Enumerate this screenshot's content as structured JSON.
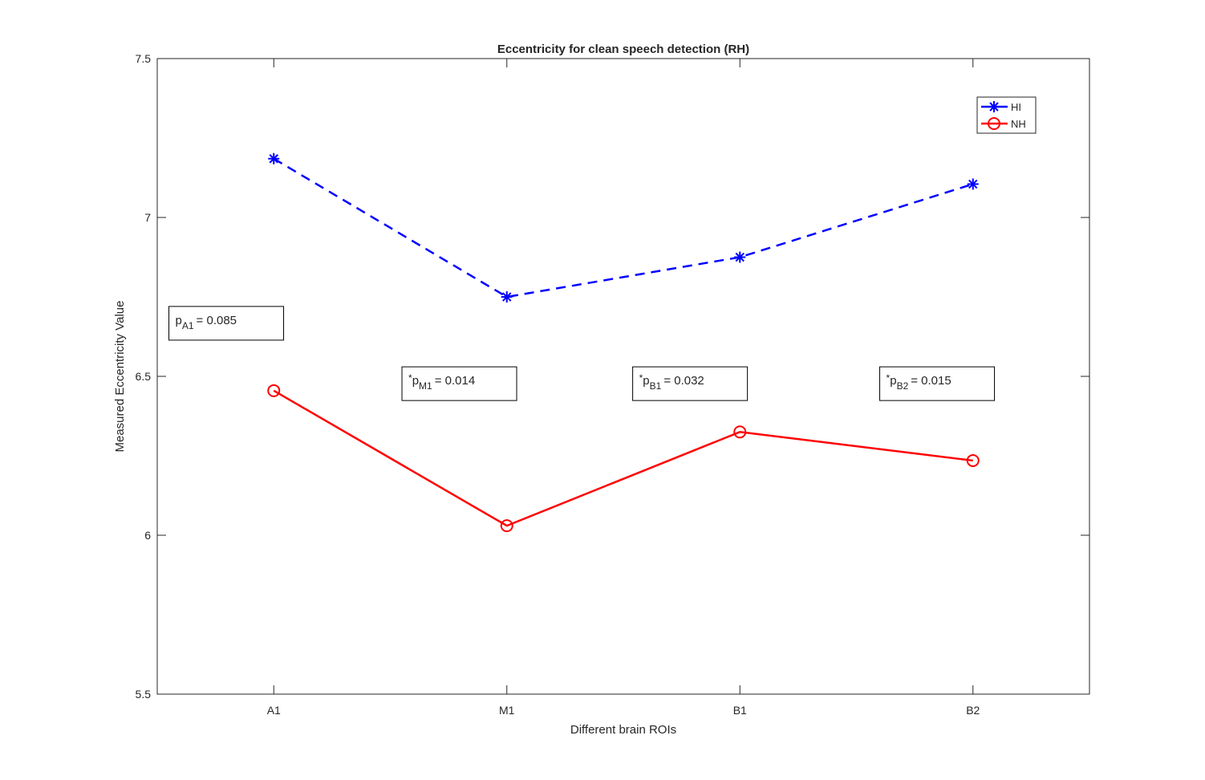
{
  "chart_data": {
    "type": "line",
    "title": "Eccentricity for clean speech detection (RH)",
    "xlabel": "Different brain ROIs",
    "ylabel": "Measured Eccentricity Value",
    "categories": [
      "A1",
      "M1",
      "B1",
      "B2"
    ],
    "xlim": [
      0.5,
      4.5
    ],
    "ylim": [
      5.5,
      7.5
    ],
    "yticks": [
      5.5,
      6,
      6.5,
      7,
      7.5
    ],
    "ytick_labels": [
      "5.5",
      "6",
      "6.5",
      "7",
      "7.5"
    ],
    "grid": false,
    "legend_position": "top-right",
    "series": [
      {
        "name": "HI",
        "values": [
          7.185,
          6.75,
          6.875,
          7.105
        ],
        "color": "#0000FF",
        "marker": "asterisk",
        "line_style": "dashed"
      },
      {
        "name": "NH",
        "values": [
          6.455,
          6.03,
          6.325,
          6.235
        ],
        "color": "#FF0000",
        "marker": "circle",
        "line_style": "solid"
      }
    ],
    "annotations": [
      {
        "prefix": "",
        "p": "p",
        "sub": "A1",
        "value": "=  0.085",
        "x": 0.55,
        "y": 6.72
      },
      {
        "prefix": "*",
        "p": "p",
        "sub": "M1",
        "value": "=  0.014",
        "x": 1.55,
        "y": 6.53
      },
      {
        "prefix": "*",
        "p": "p",
        "sub": "B1",
        "value": "=  0.032",
        "x": 2.54,
        "y": 6.53
      },
      {
        "prefix": "*",
        "p": "p",
        "sub": "B2",
        "value": "=  0.015",
        "x": 3.6,
        "y": 6.53
      }
    ]
  }
}
